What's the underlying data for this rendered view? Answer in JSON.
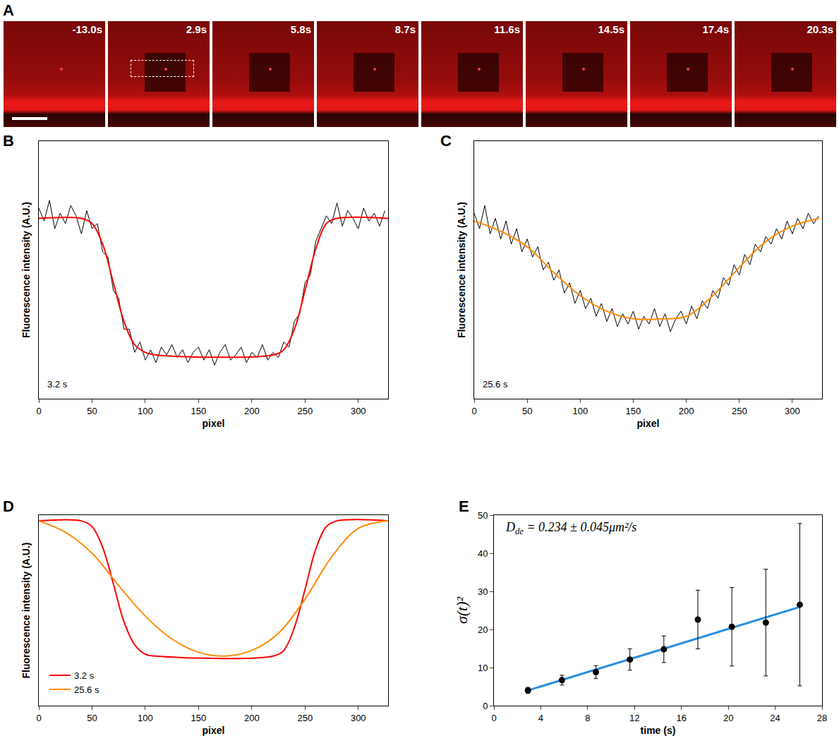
{
  "panel_a": {
    "panel_label": "A",
    "frames": [
      "-13.0s",
      "2.9s",
      "5.8s",
      "8.7s",
      "11.6s",
      "14.5s",
      "17.4s",
      "20.3s"
    ]
  },
  "chart_data": [
    {
      "panel_label": "B",
      "type": "line",
      "x_label": "pixel",
      "y_label": "Fluorescence intensity (A.U.)",
      "annotations": [
        "3.2 s"
      ],
      "xlim": [
        0,
        328
      ],
      "xticks": [
        0,
        50,
        100,
        150,
        200,
        250,
        300
      ],
      "ylim": [
        0,
        1
      ],
      "tick_labels": "x",
      "grid": false,
      "series": [
        {
          "color": "#000000",
          "x": [
            0,
            5,
            10,
            15,
            20,
            25,
            30,
            35,
            40,
            45,
            50,
            55,
            60,
            65,
            70,
            75,
            80,
            85,
            90,
            95,
            100,
            105,
            110,
            115,
            120,
            125,
            130,
            135,
            140,
            145,
            150,
            155,
            160,
            165,
            170,
            175,
            180,
            185,
            190,
            195,
            200,
            205,
            210,
            215,
            220,
            225,
            230,
            235,
            240,
            245,
            250,
            255,
            260,
            265,
            270,
            275,
            280,
            285,
            290,
            295,
            300,
            305,
            310,
            315,
            320,
            325
          ],
          "values": [
            0.74,
            0.69,
            0.77,
            0.66,
            0.72,
            0.68,
            0.75,
            0.71,
            0.64,
            0.73,
            0.66,
            0.68,
            0.57,
            0.55,
            0.42,
            0.39,
            0.27,
            0.27,
            0.18,
            0.22,
            0.15,
            0.19,
            0.14,
            0.2,
            0.17,
            0.21,
            0.16,
            0.19,
            0.14,
            0.18,
            0.2,
            0.15,
            0.19,
            0.13,
            0.18,
            0.21,
            0.15,
            0.17,
            0.2,
            0.14,
            0.18,
            0.16,
            0.21,
            0.15,
            0.18,
            0.16,
            0.22,
            0.2,
            0.3,
            0.33,
            0.45,
            0.48,
            0.61,
            0.66,
            0.71,
            0.68,
            0.76,
            0.67,
            0.73,
            0.7,
            0.66,
            0.74,
            0.69,
            0.72,
            0.67,
            0.73
          ]
        },
        {
          "color": "#ff0000",
          "x": [
            0,
            40,
            50,
            60,
            70,
            80,
            90,
            100,
            110,
            220,
            230,
            240,
            250,
            260,
            270,
            280,
            328
          ],
          "values": [
            0.7,
            0.7,
            0.68,
            0.6,
            0.45,
            0.3,
            0.21,
            0.18,
            0.17,
            0.17,
            0.19,
            0.27,
            0.42,
            0.58,
            0.68,
            0.7,
            0.7
          ]
        }
      ]
    },
    {
      "panel_label": "C",
      "type": "line",
      "x_label": "pixel",
      "y_label": "Fluorescence intensity (A.U.)",
      "annotations": [
        "25.6 s"
      ],
      "xlim": [
        0,
        328
      ],
      "xticks": [
        0,
        50,
        100,
        150,
        200,
        250,
        300
      ],
      "ylim": [
        0,
        1
      ],
      "tick_labels": "x",
      "grid": false,
      "series": [
        {
          "color": "#000000",
          "x": [
            0,
            5,
            10,
            15,
            20,
            25,
            30,
            35,
            40,
            45,
            50,
            55,
            60,
            65,
            70,
            75,
            80,
            85,
            90,
            95,
            100,
            105,
            110,
            115,
            120,
            125,
            130,
            135,
            140,
            145,
            150,
            155,
            160,
            165,
            170,
            175,
            180,
            185,
            190,
            195,
            200,
            205,
            210,
            215,
            220,
            225,
            230,
            235,
            240,
            245,
            250,
            255,
            260,
            265,
            270,
            275,
            280,
            285,
            290,
            295,
            300,
            305,
            310,
            315,
            320,
            325
          ],
          "values": [
            0.72,
            0.66,
            0.75,
            0.64,
            0.7,
            0.62,
            0.69,
            0.6,
            0.66,
            0.57,
            0.62,
            0.55,
            0.59,
            0.5,
            0.53,
            0.46,
            0.5,
            0.41,
            0.45,
            0.37,
            0.42,
            0.35,
            0.39,
            0.32,
            0.37,
            0.3,
            0.35,
            0.28,
            0.33,
            0.29,
            0.34,
            0.27,
            0.32,
            0.29,
            0.35,
            0.28,
            0.33,
            0.26,
            0.31,
            0.34,
            0.29,
            0.36,
            0.31,
            0.38,
            0.35,
            0.42,
            0.39,
            0.47,
            0.44,
            0.52,
            0.48,
            0.56,
            0.52,
            0.6,
            0.57,
            0.63,
            0.6,
            0.66,
            0.62,
            0.69,
            0.64,
            0.7,
            0.66,
            0.72,
            0.68,
            0.71
          ]
        },
        {
          "color": "#ff8c00",
          "x": [
            0,
            25,
            50,
            75,
            100,
            125,
            150,
            175,
            200,
            225,
            250,
            275,
            300,
            325
          ],
          "values": [
            0.69,
            0.65,
            0.59,
            0.49,
            0.4,
            0.34,
            0.31,
            0.31,
            0.32,
            0.4,
            0.51,
            0.61,
            0.67,
            0.7
          ]
        }
      ]
    },
    {
      "panel_label": "D",
      "type": "line",
      "x_label": "pixel",
      "y_label": "Fluorescence intensity (A.U.)",
      "xlim": [
        0,
        328
      ],
      "xticks": [
        0,
        50,
        100,
        150,
        200,
        250,
        300
      ],
      "ylim": [
        0,
        1
      ],
      "tick_labels": "x",
      "grid": false,
      "legend": "lower left",
      "series": [
        {
          "name": "3.2 s",
          "color": "#ff0000",
          "x": [
            0,
            40,
            50,
            60,
            70,
            80,
            90,
            100,
            110,
            220,
            230,
            240,
            250,
            260,
            270,
            280,
            328
          ],
          "values": [
            0.97,
            0.97,
            0.94,
            0.83,
            0.64,
            0.44,
            0.32,
            0.27,
            0.26,
            0.26,
            0.29,
            0.41,
            0.61,
            0.82,
            0.94,
            0.97,
            0.97
          ]
        },
        {
          "name": "25.6 s",
          "color": "#ff8c00",
          "x": [
            0,
            25,
            50,
            75,
            100,
            125,
            150,
            175,
            200,
            225,
            250,
            275,
            300,
            328
          ],
          "values": [
            0.97,
            0.91,
            0.8,
            0.63,
            0.47,
            0.35,
            0.28,
            0.26,
            0.29,
            0.38,
            0.56,
            0.78,
            0.93,
            0.97
          ]
        }
      ]
    },
    {
      "panel_label": "E",
      "type": "scatter",
      "x_label": "time (s)",
      "y_label": "σ(t)²",
      "annotations": [
        {
          "text": "D",
          "subscript": "de",
          "suffix": " = 0.234 ± 0.045μm²/s"
        }
      ],
      "xlim": [
        0,
        28
      ],
      "xticks": [
        0,
        4,
        8,
        12,
        16,
        20,
        24,
        28
      ],
      "ylim": [
        0,
        50
      ],
      "yticks": [
        0,
        10,
        20,
        30,
        40,
        50
      ],
      "grid": false,
      "series": [
        {
          "type": "line",
          "color": "#2b8fe0",
          "x": [
            2.9,
            26.1
          ],
          "values": [
            4.0,
            25.9
          ]
        },
        {
          "type": "scatter",
          "color": "#000000",
          "marker": "circle",
          "x": [
            2.9,
            5.8,
            8.7,
            11.6,
            14.5,
            17.4,
            20.3,
            23.2,
            26.1
          ],
          "values": [
            4.0,
            6.7,
            8.8,
            12.1,
            14.8,
            22.6,
            20.7,
            21.8,
            26.5
          ],
          "error": [
            0.8,
            1.3,
            1.7,
            2.8,
            3.5,
            7.7,
            10.3,
            14.0,
            21.3
          ]
        }
      ]
    }
  ]
}
